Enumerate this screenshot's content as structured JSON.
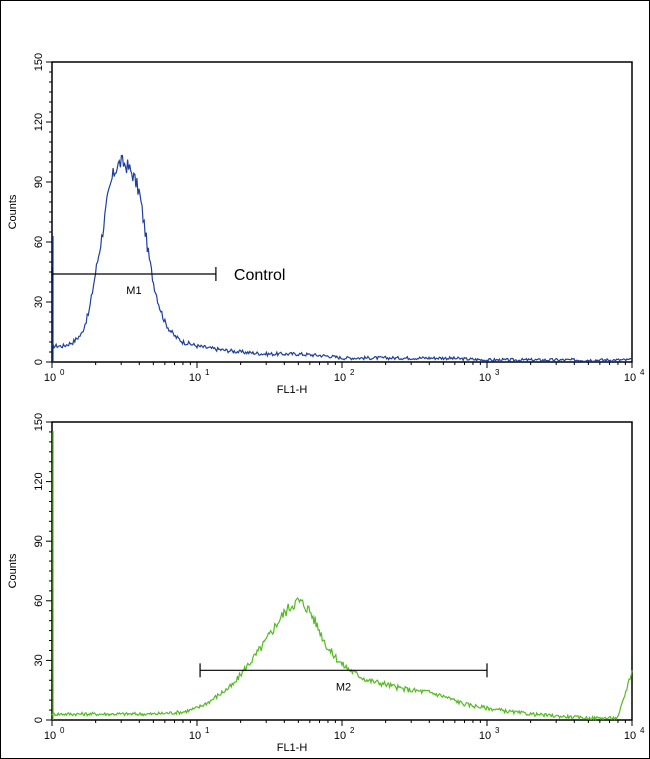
{
  "chart_data": [
    {
      "type": "line",
      "xlabel": "FL1-H",
      "ylabel": "Counts",
      "x_scale": "log",
      "xlim": [
        1,
        10000
      ],
      "ylim": [
        0,
        150
      ],
      "y_ticks": [
        "0",
        "30",
        "60",
        "90",
        "120",
        "150"
      ],
      "x_ticks": [
        {
          "base": "10",
          "exp": "0"
        },
        {
          "base": "10",
          "exp": "1"
        },
        {
          "base": "10",
          "exp": "2"
        },
        {
          "base": "10",
          "exp": "3"
        },
        {
          "base": "10",
          "exp": "4"
        }
      ],
      "color": "#1f3f9f",
      "series": [
        {
          "x": [
            1,
            1.2,
            1.4,
            1.6,
            1.8,
            2,
            2.2,
            2.4,
            2.6,
            2.8,
            3,
            3.3,
            3.6,
            4,
            4.3,
            4.6,
            5,
            5.5,
            6,
            6.5,
            7,
            8,
            9,
            10,
            12,
            15,
            20,
            30,
            50,
            80,
            100,
            200,
            500,
            1000,
            10000
          ],
          "y": [
            8,
            8,
            10,
            14,
            25,
            45,
            62,
            80,
            92,
            98,
            100,
            98,
            94,
            85,
            70,
            55,
            40,
            28,
            20,
            16,
            13,
            10,
            9,
            8,
            7,
            6,
            5,
            4,
            4,
            3,
            2,
            2,
            2,
            1,
            1
          ]
        }
      ],
      "markers": [
        {
          "label": "M1",
          "x_start": 1,
          "x_end": 13.5,
          "y": 44
        }
      ],
      "annotation": {
        "text": "Control",
        "x": 13.5,
        "y": 44
      }
    },
    {
      "type": "line",
      "xlabel": "FL1-H",
      "ylabel": "Counts",
      "x_scale": "log",
      "xlim": [
        1,
        10000
      ],
      "ylim": [
        0,
        150
      ],
      "y_ticks": [
        "0",
        "30",
        "60",
        "90",
        "120",
        "150"
      ],
      "x_ticks": [
        {
          "base": "10",
          "exp": "0"
        },
        {
          "base": "10",
          "exp": "1"
        },
        {
          "base": "10",
          "exp": "2"
        },
        {
          "base": "10",
          "exp": "3"
        },
        {
          "base": "10",
          "exp": "4"
        }
      ],
      "color": "#55bb22",
      "series": [
        {
          "x": [
            1,
            2,
            5,
            8,
            10,
            12,
            15,
            18,
            20,
            25,
            30,
            35,
            40,
            45,
            50,
            55,
            60,
            70,
            80,
            100,
            120,
            150,
            200,
            250,
            300,
            400,
            500,
            700,
            1000,
            1500,
            2000,
            3000,
            5000,
            8000,
            10000
          ],
          "y": [
            3,
            3,
            3,
            4,
            6,
            9,
            14,
            18,
            23,
            32,
            40,
            48,
            54,
            58,
            60,
            58,
            55,
            45,
            36,
            28,
            24,
            20,
            18,
            16,
            15,
            14,
            12,
            8,
            6,
            4,
            3,
            2,
            1,
            1,
            25
          ]
        }
      ],
      "markers": [
        {
          "label": "M2",
          "x_start": 10.5,
          "x_end": 1000,
          "y": 25
        }
      ]
    }
  ]
}
